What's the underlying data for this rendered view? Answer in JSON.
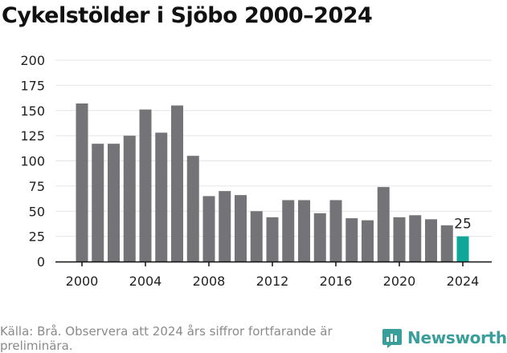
{
  "title": "Cykelstölder i Sjöbo 2000–2024",
  "footer": {
    "source": "Källa: Brå. Observera att 2024 års siffror fortfarande är preliminära.",
    "brand": "Newsworthy"
  },
  "colors": {
    "bar": "#747378",
    "highlight": "#0fa79a",
    "grid": "#e4e4e4",
    "axis": "#111111",
    "brand": "#3a9e9b"
  },
  "chart_data": {
    "type": "bar",
    "categories": [
      "2000",
      "2001",
      "2002",
      "2003",
      "2004",
      "2005",
      "2006",
      "2007",
      "2008",
      "2009",
      "2010",
      "2011",
      "2012",
      "2013",
      "2014",
      "2015",
      "2016",
      "2017",
      "2018",
      "2019",
      "2020",
      "2021",
      "2022",
      "2023",
      "2024"
    ],
    "values": [
      157,
      117,
      117,
      125,
      151,
      128,
      155,
      105,
      65,
      70,
      66,
      50,
      44,
      61,
      61,
      48,
      61,
      43,
      41,
      74,
      44,
      46,
      42,
      36,
      25
    ],
    "x_tick_labels": [
      "2000",
      "2004",
      "2008",
      "2012",
      "2016",
      "2020",
      "2024"
    ],
    "y_ticks": [
      0,
      25,
      50,
      75,
      100,
      125,
      150,
      175,
      200
    ],
    "ylim": [
      0,
      200
    ],
    "highlight_index": 24,
    "data_labels": [
      {
        "index": 24,
        "text": "25"
      }
    ],
    "grid": true,
    "legend": "none"
  }
}
